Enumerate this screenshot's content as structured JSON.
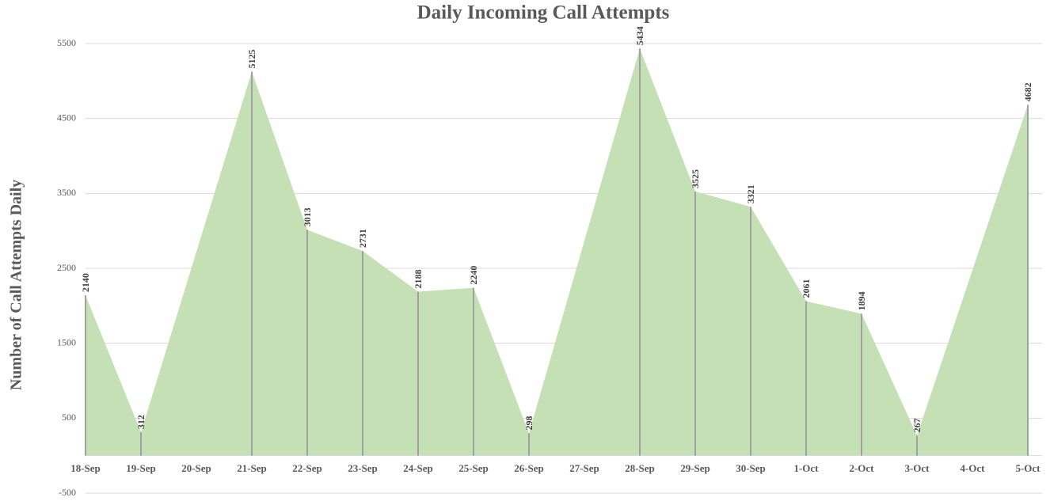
{
  "chart_data": {
    "type": "area",
    "title": "Daily Incoming Call Attempts",
    "y_label": "Number of Call Attempts Daily",
    "categories": [
      "18-Sep",
      "19-Sep",
      "20-Sep",
      "21-Sep",
      "22-Sep",
      "23-Sep",
      "24-Sep",
      "25-Sep",
      "26-Sep",
      "27-Sep",
      "28-Sep",
      "29-Sep",
      "30-Sep",
      "1-Oct",
      "2-Oct",
      "3-Oct",
      "4-Oct",
      "5-Oct"
    ],
    "values": [
      2140,
      312,
      null,
      5125,
      3013,
      2731,
      2188,
      2240,
      298,
      null,
      5434,
      3525,
      3321,
      2061,
      1894,
      267,
      null,
      4682
    ],
    "color": "#c5e0b4",
    "drop_line_color": "#a0a0a0",
    "ylim": [
      -500,
      5500
    ],
    "yticks": [
      -500,
      500,
      1500,
      2500,
      3500,
      4500,
      5500
    ],
    "grid": true
  }
}
